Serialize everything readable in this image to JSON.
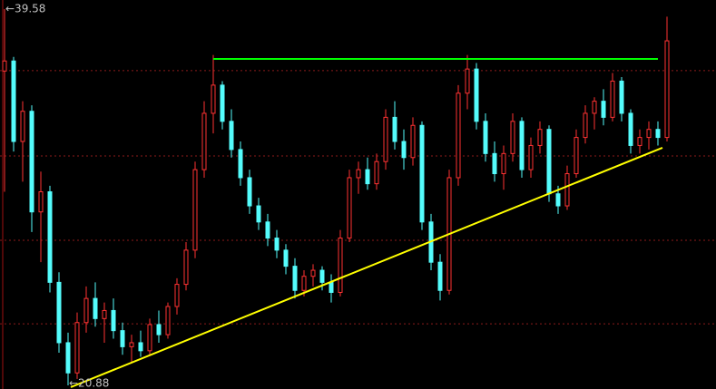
{
  "chart_data": {
    "type": "candlestick",
    "ylim": [
      20.7,
      40.03
    ],
    "up_color": "#ff3232",
    "down_color": "#54fcfc",
    "grid_color": "#8b1a1a",
    "gridlines": [
      36.52,
      32.28,
      28.09,
      23.94
    ],
    "candles": [
      [
        36.5,
        39.58,
        30.5,
        37.0
      ],
      [
        37.0,
        37.2,
        32.5,
        33.0
      ],
      [
        33.0,
        35.0,
        31.0,
        34.5
      ],
      [
        34.5,
        34.8,
        28.5,
        29.5
      ],
      [
        29.5,
        31.5,
        27.0,
        30.5
      ],
      [
        30.5,
        30.8,
        25.5,
        26.0
      ],
      [
        26.0,
        26.5,
        22.5,
        23.0
      ],
      [
        23.0,
        23.5,
        20.88,
        21.5
      ],
      [
        21.5,
        24.5,
        21.2,
        24.0
      ],
      [
        24.0,
        25.8,
        23.5,
        25.2
      ],
      [
        25.2,
        26.0,
        23.8,
        24.2
      ],
      [
        24.2,
        25.0,
        23.0,
        24.6
      ],
      [
        24.6,
        25.2,
        23.2,
        23.6
      ],
      [
        23.6,
        24.0,
        22.4,
        22.8
      ],
      [
        22.8,
        23.4,
        22.0,
        23.0
      ],
      [
        23.0,
        23.6,
        22.3,
        22.6
      ],
      [
        22.6,
        24.2,
        22.4,
        23.9
      ],
      [
        23.9,
        24.6,
        23.0,
        23.4
      ],
      [
        23.4,
        25.0,
        23.2,
        24.8
      ],
      [
        24.8,
        26.2,
        24.4,
        25.9
      ],
      [
        25.9,
        28.0,
        25.6,
        27.6
      ],
      [
        27.6,
        32.0,
        27.2,
        31.6
      ],
      [
        31.6,
        35.0,
        31.2,
        34.4
      ],
      [
        34.4,
        37.3,
        33.4,
        35.8
      ],
      [
        35.8,
        36.0,
        33.6,
        34.0
      ],
      [
        34.0,
        34.6,
        32.2,
        32.6
      ],
      [
        32.6,
        33.0,
        30.8,
        31.2
      ],
      [
        31.2,
        31.6,
        29.4,
        29.8
      ],
      [
        29.8,
        30.2,
        28.6,
        29.0
      ],
      [
        29.0,
        29.4,
        27.8,
        28.2
      ],
      [
        28.2,
        28.6,
        27.2,
        27.6
      ],
      [
        27.6,
        27.9,
        26.4,
        26.8
      ],
      [
        26.8,
        27.2,
        25.2,
        25.6
      ],
      [
        25.6,
        26.6,
        25.3,
        26.3
      ],
      [
        26.3,
        26.9,
        25.8,
        26.6
      ],
      [
        26.6,
        26.8,
        25.6,
        26.0
      ],
      [
        26.0,
        26.4,
        25.0,
        25.5
      ],
      [
        25.5,
        28.6,
        25.3,
        28.2
      ],
      [
        28.2,
        31.6,
        28.0,
        31.2
      ],
      [
        31.2,
        32.0,
        30.4,
        31.6
      ],
      [
        31.6,
        32.2,
        30.6,
        30.9
      ],
      [
        30.9,
        32.4,
        30.6,
        32.0
      ],
      [
        32.0,
        34.6,
        31.6,
        34.2
      ],
      [
        34.2,
        35.0,
        32.6,
        33.0
      ],
      [
        33.0,
        33.6,
        31.6,
        32.2
      ],
      [
        32.2,
        34.2,
        31.8,
        33.8
      ],
      [
        33.8,
        34.0,
        28.6,
        29.0
      ],
      [
        29.0,
        29.4,
        26.6,
        27.0
      ],
      [
        27.0,
        27.4,
        25.1,
        25.6
      ],
      [
        25.6,
        31.6,
        25.4,
        31.2
      ],
      [
        31.2,
        35.8,
        30.8,
        35.4
      ],
      [
        35.4,
        37.3,
        34.6,
        36.6
      ],
      [
        36.6,
        36.9,
        33.6,
        34.0
      ],
      [
        34.0,
        34.4,
        32.0,
        32.4
      ],
      [
        32.4,
        33.0,
        31.0,
        31.4
      ],
      [
        31.4,
        32.8,
        30.6,
        32.4
      ],
      [
        32.4,
        34.4,
        32.0,
        34.0
      ],
      [
        34.0,
        34.2,
        31.2,
        31.6
      ],
      [
        31.6,
        33.2,
        31.2,
        32.8
      ],
      [
        32.8,
        34.0,
        32.4,
        33.6
      ],
      [
        33.6,
        33.8,
        30.0,
        30.4
      ],
      [
        30.4,
        30.8,
        29.4,
        29.8
      ],
      [
        29.8,
        31.8,
        29.6,
        31.4
      ],
      [
        31.4,
        33.6,
        31.2,
        33.2
      ],
      [
        33.2,
        34.8,
        32.9,
        34.4
      ],
      [
        34.4,
        35.2,
        33.6,
        35.0
      ],
      [
        35.0,
        35.6,
        33.8,
        34.2
      ],
      [
        34.2,
        36.4,
        34.0,
        36.0
      ],
      [
        36.0,
        36.2,
        34.0,
        34.4
      ],
      [
        34.4,
        34.6,
        32.4,
        32.8
      ],
      [
        32.8,
        33.6,
        32.4,
        33.2
      ],
      [
        33.2,
        34.0,
        32.6,
        33.6
      ],
      [
        33.6,
        34.0,
        32.8,
        33.2
      ],
      [
        33.2,
        39.2,
        33.0,
        38.0
      ]
    ],
    "trendlines": [
      {
        "color": "#00ff00",
        "x": [
          23,
          72
        ],
        "values": [
          37.1,
          37.1
        ]
      },
      {
        "color": "#ffff00",
        "x": [
          7.3,
          72.5
        ],
        "values": [
          20.79,
          32.69
        ]
      }
    ],
    "annotations": [
      {
        "value": 39.58,
        "label": "←39.58"
      },
      {
        "value": 20.88,
        "label": "←20.88"
      }
    ]
  }
}
